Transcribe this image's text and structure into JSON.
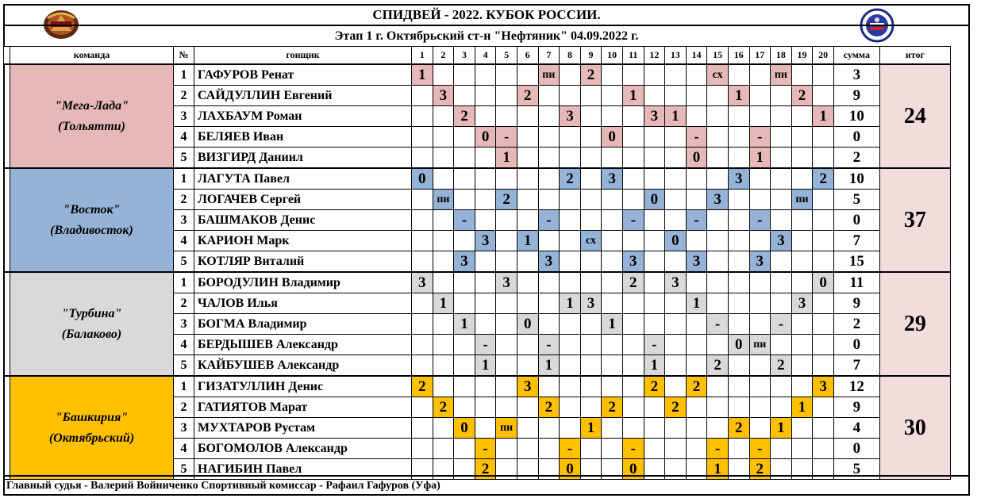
{
  "title": "СПИДВЕЙ - 2022.   КУБОК РОССИИ.",
  "subtitle": "Этап 1 г. Октябрьский ст-н \"Нефтяник\" 04.09.2022 г.",
  "headers": {
    "team": "команда",
    "no": "№",
    "rider": "гонщик",
    "heats": [
      "1",
      "2",
      "3",
      "4",
      "5",
      "6",
      "7",
      "8",
      "9",
      "10",
      "11",
      "12",
      "13",
      "14",
      "15",
      "16",
      "17",
      "18",
      "19",
      "20"
    ],
    "sum": "сумма",
    "total": "итог"
  },
  "colors": {
    "t0": "#e6b8b7",
    "t1": "#95b3d7",
    "t2": "#d9d9d9",
    "t3": "#ffc000",
    "total_bg": "#f2dcdc"
  },
  "teams": [
    {
      "name": "\"Мега-Лада\"",
      "city": "(Тольятти)",
      "total": "24",
      "riders": [
        {
          "no": "1",
          "name": "ГАФУРОВ Ренат",
          "sum": "3",
          "cells": [
            [
              1,
              "1"
            ],
            [
              7,
              "пи"
            ],
            [
              9,
              "2"
            ],
            [
              15,
              "сх"
            ],
            [
              18,
              "пи"
            ]
          ]
        },
        {
          "no": "2",
          "name": "САЙДУЛЛИН Евгений",
          "sum": "9",
          "cells": [
            [
              2,
              "3"
            ],
            [
              6,
              "2"
            ],
            [
              11,
              "1"
            ],
            [
              16,
              "1"
            ],
            [
              19,
              "2"
            ]
          ]
        },
        {
          "no": "3",
          "name": "ЛАХБАУМ Роман",
          "sum": "10",
          "cells": [
            [
              3,
              "2"
            ],
            [
              8,
              "3"
            ],
            [
              12,
              "3"
            ],
            [
              13,
              "1"
            ],
            [
              20,
              "1"
            ]
          ]
        },
        {
          "no": "4",
          "name": "БЕЛЯЕВ Иван",
          "sum": "0",
          "cells": [
            [
              4,
              "0"
            ],
            [
              5,
              "-"
            ],
            [
              10,
              "0"
            ],
            [
              14,
              "-"
            ],
            [
              17,
              "-"
            ]
          ]
        },
        {
          "no": "5",
          "name": "ВИЗГИРД Даниил",
          "sum": "2",
          "cells": [
            [
              5,
              "1"
            ],
            [
              14,
              "0"
            ],
            [
              17,
              "1"
            ]
          ]
        }
      ]
    },
    {
      "name": "\"Восток\"",
      "city": "(Владивосток)",
      "total": "37",
      "riders": [
        {
          "no": "1",
          "name": "ЛАГУТА Павел",
          "sum": "10",
          "cells": [
            [
              1,
              "0"
            ],
            [
              8,
              "2"
            ],
            [
              10,
              "3"
            ],
            [
              16,
              "3"
            ],
            [
              20,
              "2"
            ]
          ]
        },
        {
          "no": "2",
          "name": "ЛОГАЧЕВ Сергей",
          "sum": "5",
          "cells": [
            [
              2,
              "пи"
            ],
            [
              5,
              "2"
            ],
            [
              12,
              "0"
            ],
            [
              15,
              "3"
            ],
            [
              19,
              "пи"
            ]
          ]
        },
        {
          "no": "3",
          "name": "БАШМАКОВ Денис",
          "sum": "0",
          "cells": [
            [
              3,
              "-"
            ],
            [
              7,
              "-"
            ],
            [
              11,
              "-"
            ],
            [
              14,
              "-"
            ],
            [
              17,
              "-"
            ]
          ]
        },
        {
          "no": "4",
          "name": "КАРИОН Марк",
          "sum": "7",
          "cells": [
            [
              4,
              "3"
            ],
            [
              6,
              "1"
            ],
            [
              9,
              "сх"
            ],
            [
              13,
              "0"
            ],
            [
              18,
              "3"
            ]
          ]
        },
        {
          "no": "5",
          "name": "КОТЛЯР Виталий",
          "sum": "15",
          "cells": [
            [
              3,
              "3"
            ],
            [
              7,
              "3"
            ],
            [
              11,
              "3"
            ],
            [
              14,
              "3"
            ],
            [
              17,
              "3"
            ]
          ]
        }
      ]
    },
    {
      "name": "\"Турбина\"",
      "city": "(Балаково)",
      "total": "29",
      "riders": [
        {
          "no": "1",
          "name": "БОРОДУЛИН Владимир",
          "sum": "11",
          "cells": [
            [
              1,
              "3"
            ],
            [
              5,
              "3"
            ],
            [
              11,
              "2"
            ],
            [
              13,
              "3"
            ],
            [
              20,
              "0"
            ]
          ]
        },
        {
          "no": "2",
          "name": "ЧАЛОВ Илья",
          "sum": "9",
          "cells": [
            [
              2,
              "1"
            ],
            [
              8,
              "1"
            ],
            [
              9,
              "3"
            ],
            [
              14,
              "1"
            ],
            [
              19,
              "3"
            ]
          ]
        },
        {
          "no": "3",
          "name": "БОГМА Владимир",
          "sum": "2",
          "cells": [
            [
              3,
              "1"
            ],
            [
              6,
              "0"
            ],
            [
              10,
              "1"
            ],
            [
              15,
              "-"
            ],
            [
              18,
              "-"
            ]
          ]
        },
        {
          "no": "4",
          "name": "БЕРДЫШЕВ Александр",
          "sum": "0",
          "cells": [
            [
              4,
              "-"
            ],
            [
              7,
              "-"
            ],
            [
              12,
              "-"
            ],
            [
              16,
              "0"
            ],
            [
              17,
              "пи"
            ]
          ]
        },
        {
          "no": "5",
          "name": "КАЙБУШЕВ Александр",
          "sum": "7",
          "cells": [
            [
              4,
              "1"
            ],
            [
              7,
              "1"
            ],
            [
              12,
              "1"
            ],
            [
              15,
              "2"
            ],
            [
              18,
              "2"
            ]
          ]
        }
      ]
    },
    {
      "name": "\"Башкирия\"",
      "city": "(Октябрьский)",
      "total": "30",
      "riders": [
        {
          "no": "1",
          "name": "ГИЗАТУЛЛИН Денис",
          "sum": "12",
          "cells": [
            [
              1,
              "2"
            ],
            [
              6,
              "3"
            ],
            [
              12,
              "2"
            ],
            [
              14,
              "2"
            ],
            [
              20,
              "3"
            ]
          ]
        },
        {
          "no": "2",
          "name": "ГАТИЯТОВ Марат",
          "sum": "9",
          "cells": [
            [
              2,
              "2"
            ],
            [
              7,
              "2"
            ],
            [
              10,
              "2"
            ],
            [
              13,
              "2"
            ],
            [
              19,
              "1"
            ]
          ]
        },
        {
          "no": "3",
          "name": "МУХТАРОВ Рустам",
          "sum": "4",
          "cells": [
            [
              3,
              "0"
            ],
            [
              5,
              "пи"
            ],
            [
              9,
              "1"
            ],
            [
              16,
              "2"
            ],
            [
              18,
              "1"
            ]
          ]
        },
        {
          "no": "4",
          "name": "БОГОМОЛОВ Александр",
          "sum": "0",
          "cells": [
            [
              4,
              "-"
            ],
            [
              8,
              "-"
            ],
            [
              11,
              "-"
            ],
            [
              15,
              "-"
            ],
            [
              17,
              "-"
            ]
          ]
        },
        {
          "no": "5",
          "name": "НАГИБИН Павел",
          "sum": "5",
          "cells": [
            [
              4,
              "2"
            ],
            [
              8,
              "0"
            ],
            [
              11,
              "0"
            ],
            [
              15,
              "1"
            ],
            [
              17,
              "2"
            ]
          ]
        }
      ]
    }
  ],
  "footer": "Главный судья - Валерий Войниченко Спортивный комиссар - Рафаил Гафуров (Уфа)"
}
